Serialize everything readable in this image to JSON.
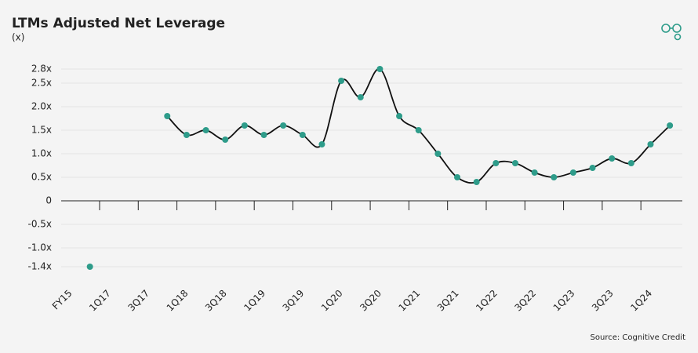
{
  "chart_data": {
    "type": "line",
    "title": "LTMs Adjusted Net Leverage",
    "subtitle": "(x)",
    "source": "Source: Cognitive Credit",
    "categories": [
      "FY15",
      null,
      "1Q17",
      null,
      "3Q17",
      null,
      "1Q18",
      null,
      "3Q18",
      null,
      "1Q19",
      null,
      "3Q19",
      null,
      "1Q20",
      null,
      "3Q20",
      null,
      "1Q21",
      null,
      "3Q21",
      null,
      "1Q22",
      null,
      "3Q22",
      null,
      "1Q23",
      null,
      "3Q23",
      null,
      "1Q24",
      null
    ],
    "series": [
      {
        "name": "LTMs Adjusted Net Leverage",
        "color": "#2e9c8a",
        "line_color": "#111111",
        "values": [
          null,
          -1.4,
          null,
          null,
          null,
          1.8,
          1.4,
          1.5,
          1.3,
          1.6,
          1.4,
          1.6,
          1.4,
          1.2,
          2.55,
          2.2,
          2.8,
          1.8,
          1.5,
          1.0,
          0.5,
          0.4,
          0.8,
          0.8,
          0.6,
          0.5,
          0.6,
          0.7,
          0.9,
          0.8,
          1.2,
          1.6
        ]
      }
    ],
    "ylim": [
      -1.4,
      2.8
    ],
    "yticks": [
      {
        "value": -1.4,
        "label": "-1.4x"
      },
      {
        "value": -1,
        "label": "-1.0x"
      },
      {
        "value": -0.5,
        "label": "-0.5x"
      },
      0,
      {
        "value": 0.5,
        "label": "0.5x"
      },
      {
        "value": 1,
        "label": "1.0x"
      },
      {
        "value": 1.5,
        "label": "1.5x"
      },
      {
        "value": 2,
        "label": "2.0x"
      },
      {
        "value": 2.5,
        "label": "2.5x"
      },
      {
        "value": 2.8,
        "label": "2.8x"
      }
    ],
    "grid": true
  }
}
